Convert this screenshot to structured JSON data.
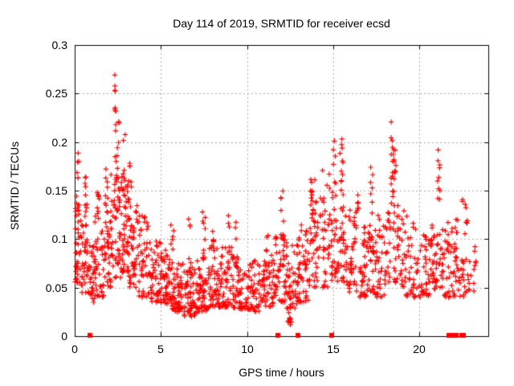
{
  "chart_data": {
    "type": "scatter",
    "title": "Day 114 of 2019, SRMTID for receiver ecsd",
    "xlabel": "GPS time / hours",
    "ylabel": "SRMTID / TECUs",
    "xlim": [
      0,
      24
    ],
    "ylim": [
      0,
      0.3
    ],
    "xticks": [
      0,
      5,
      10,
      15,
      20
    ],
    "yticks": [
      0,
      0.05,
      0.1,
      0.15,
      0.2,
      0.25,
      0.3
    ],
    "xtick_labels": [
      "0",
      "5",
      "10",
      "15",
      "20"
    ],
    "ytick_labels": [
      "0",
      "0.05",
      "0.1",
      "0.15",
      "0.2",
      "0.25",
      "0.3"
    ],
    "grid": "dotted gray at every tick",
    "legend": "none",
    "marker": "plus",
    "marker_color": "#ff0000",
    "background": "#ffffff",
    "max_point": {
      "x_hr": 2.4,
      "y_tecu": 0.272
    },
    "clusters_format": "[x_start_hr, x_end_hr, y_min_TECU, y_max_TECU, n_points, skew_toward_min]",
    "clusters": [
      [
        0.02,
        0.35,
        0.055,
        0.14,
        40,
        1.6
      ],
      [
        0.05,
        0.25,
        0.13,
        0.19,
        8,
        1
      ],
      [
        0.35,
        0.8,
        0.045,
        0.115,
        36,
        1.6
      ],
      [
        0.55,
        0.72,
        0.1,
        0.165,
        10,
        1
      ],
      [
        0.8,
        1.15,
        0.035,
        0.095,
        30,
        1.5
      ],
      [
        1.15,
        1.7,
        0.04,
        0.125,
        40,
        1.5
      ],
      [
        1.27,
        1.45,
        0.1,
        0.165,
        9,
        1
      ],
      [
        1.7,
        2.1,
        0.05,
        0.135,
        35,
        1.5
      ],
      [
        1.75,
        1.95,
        0.13,
        0.175,
        8,
        1
      ],
      [
        2.1,
        2.75,
        0.06,
        0.17,
        60,
        1.4
      ],
      [
        2.32,
        2.42,
        0.17,
        0.272,
        12,
        1
      ],
      [
        2.45,
        2.6,
        0.15,
        0.225,
        9,
        1
      ],
      [
        2.75,
        3.15,
        0.065,
        0.16,
        45,
        1.4
      ],
      [
        2.8,
        2.95,
        0.16,
        0.21,
        6,
        1
      ],
      [
        3.1,
        3.3,
        0.14,
        0.18,
        6,
        1
      ],
      [
        3.15,
        3.65,
        0.05,
        0.145,
        45,
        1.5
      ],
      [
        3.65,
        4.35,
        0.04,
        0.125,
        48,
        1.6
      ],
      [
        4.35,
        5.0,
        0.035,
        0.105,
        50,
        1.6
      ],
      [
        5.0,
        5.65,
        0.033,
        0.09,
        55,
        1.5
      ],
      [
        5.55,
        5.75,
        0.085,
        0.115,
        6,
        1
      ],
      [
        5.65,
        6.35,
        0.025,
        0.08,
        60,
        1.5
      ],
      [
        6.35,
        7.05,
        0.02,
        0.072,
        60,
        1.5
      ],
      [
        6.6,
        6.78,
        0.06,
        0.121,
        8,
        1
      ],
      [
        7.05,
        7.75,
        0.025,
        0.082,
        55,
        1.5
      ],
      [
        7.4,
        7.6,
        0.08,
        0.128,
        8,
        1
      ],
      [
        7.75,
        8.45,
        0.03,
        0.092,
        52,
        1.5
      ],
      [
        7.95,
        8.1,
        0.09,
        0.122,
        5,
        1
      ],
      [
        8.45,
        9.2,
        0.03,
        0.092,
        55,
        1.5
      ],
      [
        8.8,
        9.0,
        0.085,
        0.128,
        6,
        1
      ],
      [
        9.2,
        10.0,
        0.028,
        0.082,
        55,
        1.5
      ],
      [
        9.3,
        9.4,
        0.09,
        0.12,
        3,
        1
      ],
      [
        10.0,
        10.8,
        0.025,
        0.078,
        55,
        1.5
      ],
      [
        10.8,
        11.6,
        0.03,
        0.088,
        55,
        1.5
      ],
      [
        11.1,
        11.25,
        0.08,
        0.105,
        4,
        1
      ],
      [
        11.6,
        12.3,
        0.035,
        0.105,
        50,
        1.4
      ],
      [
        11.95,
        12.15,
        0.1,
        0.152,
        8,
        1
      ],
      [
        12.3,
        13.0,
        0.028,
        0.098,
        50,
        1.4
      ],
      [
        12.35,
        12.6,
        0.008,
        0.03,
        10,
        1
      ],
      [
        13.0,
        13.6,
        0.035,
        0.115,
        45,
        1.4
      ],
      [
        13.6,
        14.25,
        0.05,
        0.163,
        45,
        1.3
      ],
      [
        13.7,
        13.85,
        0.12,
        0.165,
        8,
        1
      ],
      [
        14.25,
        14.85,
        0.05,
        0.175,
        40,
        1.4
      ],
      [
        14.85,
        15.3,
        0.055,
        0.13,
        28,
        1.4
      ],
      [
        14.95,
        15.15,
        0.13,
        0.205,
        10,
        1
      ],
      [
        15.3,
        15.8,
        0.055,
        0.13,
        30,
        1.4
      ],
      [
        15.38,
        15.62,
        0.13,
        0.212,
        14,
        1
      ],
      [
        15.8,
        16.4,
        0.045,
        0.135,
        40,
        1.5
      ],
      [
        16.4,
        16.55,
        0.13,
        0.155,
        5,
        1
      ],
      [
        16.55,
        17.0,
        0.04,
        0.12,
        40,
        1.5
      ],
      [
        17.0,
        17.45,
        0.045,
        0.12,
        30,
        1.4
      ],
      [
        17.15,
        17.3,
        0.1,
        0.175,
        8,
        1
      ],
      [
        17.45,
        18.15,
        0.04,
        0.125,
        45,
        1.5
      ],
      [
        18.15,
        19.0,
        0.05,
        0.13,
        35,
        1.4
      ],
      [
        18.35,
        18.5,
        0.13,
        0.228,
        16,
        1
      ],
      [
        18.5,
        18.65,
        0.1,
        0.195,
        12,
        1
      ],
      [
        18.75,
        18.9,
        0.08,
        0.15,
        8,
        1
      ],
      [
        19.0,
        19.8,
        0.04,
        0.13,
        45,
        1.5
      ],
      [
        19.8,
        20.6,
        0.04,
        0.105,
        45,
        1.5
      ],
      [
        20.6,
        21.0,
        0.045,
        0.12,
        30,
        1.4
      ],
      [
        21.0,
        21.35,
        0.05,
        0.12,
        18,
        1.3
      ],
      [
        21.05,
        21.2,
        0.12,
        0.2,
        10,
        1
      ],
      [
        21.35,
        22.1,
        0.04,
        0.13,
        45,
        1.4
      ],
      [
        22.1,
        22.8,
        0.04,
        0.125,
        35,
        1.4
      ],
      [
        22.5,
        22.75,
        0.13,
        0.148,
        4,
        1
      ],
      [
        22.8,
        23.3,
        0.045,
        0.1,
        15,
        1.5
      ]
    ],
    "zero_value_square_markers_x_hr": [
      0.87,
      11.78,
      12.95,
      14.9,
      21.7,
      21.85,
      22.0,
      22.15,
      22.45,
      22.55
    ]
  }
}
